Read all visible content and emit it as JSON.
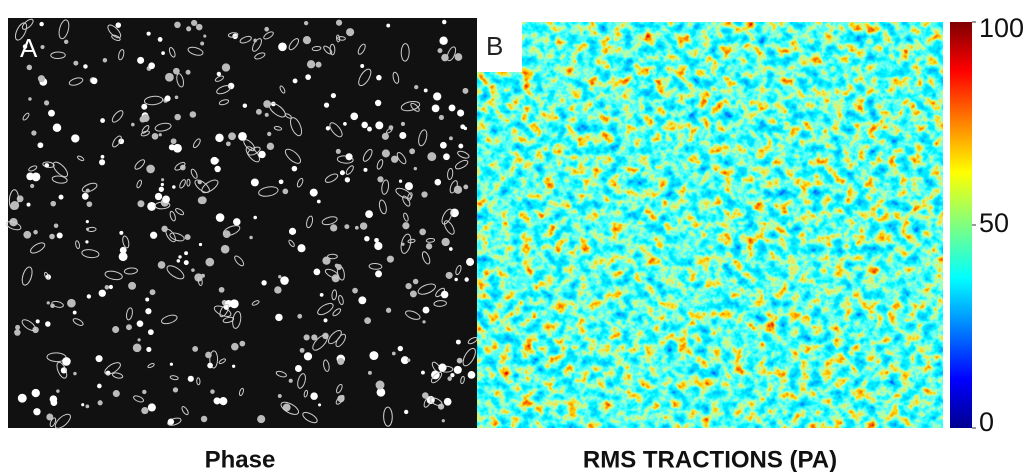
{
  "panels": [
    {
      "label": "A",
      "caption": "Phase"
    },
    {
      "label": "B",
      "caption": "RMS TRACTIONS (PA)"
    }
  ],
  "colorbar": {
    "lim": [
      0,
      100
    ],
    "ticks": [
      0,
      50,
      100
    ]
  }
}
